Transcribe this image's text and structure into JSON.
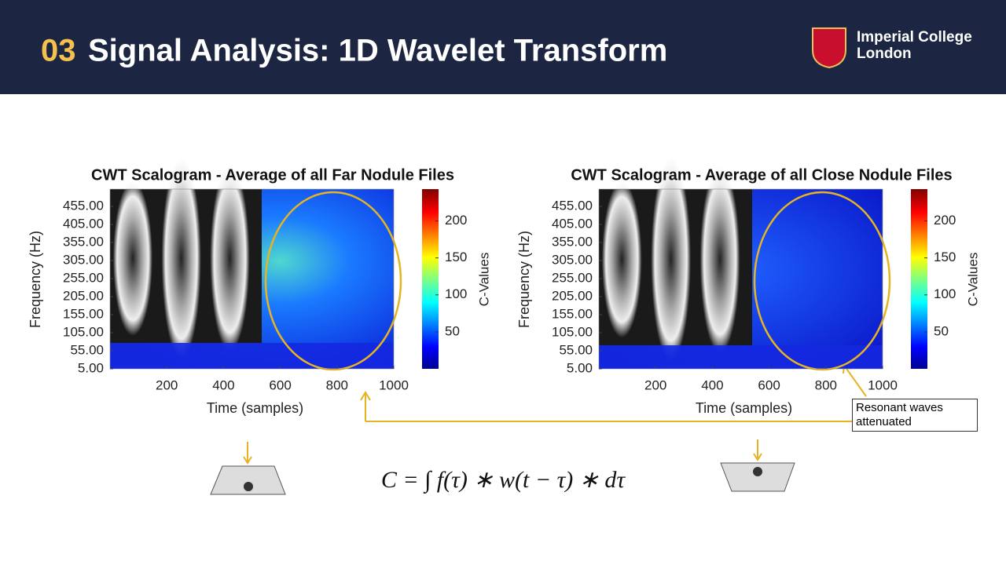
{
  "header": {
    "number": "03",
    "title": "Signal Analysis: 1D Wavelet Transform",
    "logo": [
      "Imperial College",
      "London"
    ]
  },
  "plots": [
    {
      "title": "CWT Scalogram - Average of all Far Nodule Files",
      "x_label": "Time (samples)",
      "y_label": "Frequency (Hz)",
      "colorbar_label": "C-Values",
      "xlim": [
        0,
        1000
      ],
      "ylim": [
        5,
        503
      ],
      "clim": [
        0,
        243
      ],
      "xticks": [
        200,
        400,
        600,
        800,
        1000
      ],
      "yticks": [
        {
          "value": 5,
          "label": "5.00"
        },
        {
          "value": 55,
          "label": "55.00"
        },
        {
          "value": 105,
          "label": "105.00"
        },
        {
          "value": 155,
          "label": "155.00"
        },
        {
          "value": 205,
          "label": "205.00"
        },
        {
          "value": 255,
          "label": "255.00"
        },
        {
          "value": 305,
          "label": "305.00"
        },
        {
          "value": 355,
          "label": "355.00"
        },
        {
          "value": 405,
          "label": "405.00"
        },
        {
          "value": 455,
          "label": "455.00"
        }
      ],
      "cticks": [
        50,
        100,
        150,
        200
      ]
    },
    {
      "title": "CWT Scalogram - Average of all Close Nodule Files",
      "x_label": "Time (samples)",
      "y_label": "Frequency (Hz)",
      "colorbar_label": "C-Values",
      "xlim": [
        0,
        1000
      ],
      "ylim": [
        5,
        503
      ],
      "clim": [
        0,
        243
      ],
      "xticks": [
        200,
        400,
        600,
        800,
        1000
      ],
      "yticks": [
        {
          "value": 5,
          "label": "5.00"
        },
        {
          "value": 55,
          "label": "55.00"
        },
        {
          "value": 105,
          "label": "105.00"
        },
        {
          "value": 155,
          "label": "155.00"
        },
        {
          "value": 205,
          "label": "205.00"
        },
        {
          "value": 255,
          "label": "255.00"
        },
        {
          "value": 305,
          "label": "305.00"
        },
        {
          "value": 355,
          "label": "355.00"
        },
        {
          "value": 405,
          "label": "405.00"
        },
        {
          "value": 455,
          "label": "455.00"
        }
      ],
      "cticks": [
        50,
        100,
        150,
        200
      ]
    }
  ],
  "annotation": "Resonant waves attenuated",
  "formula": "C = ∫ f(τ) ∗ w(t − τ) ∗ dτ"
}
